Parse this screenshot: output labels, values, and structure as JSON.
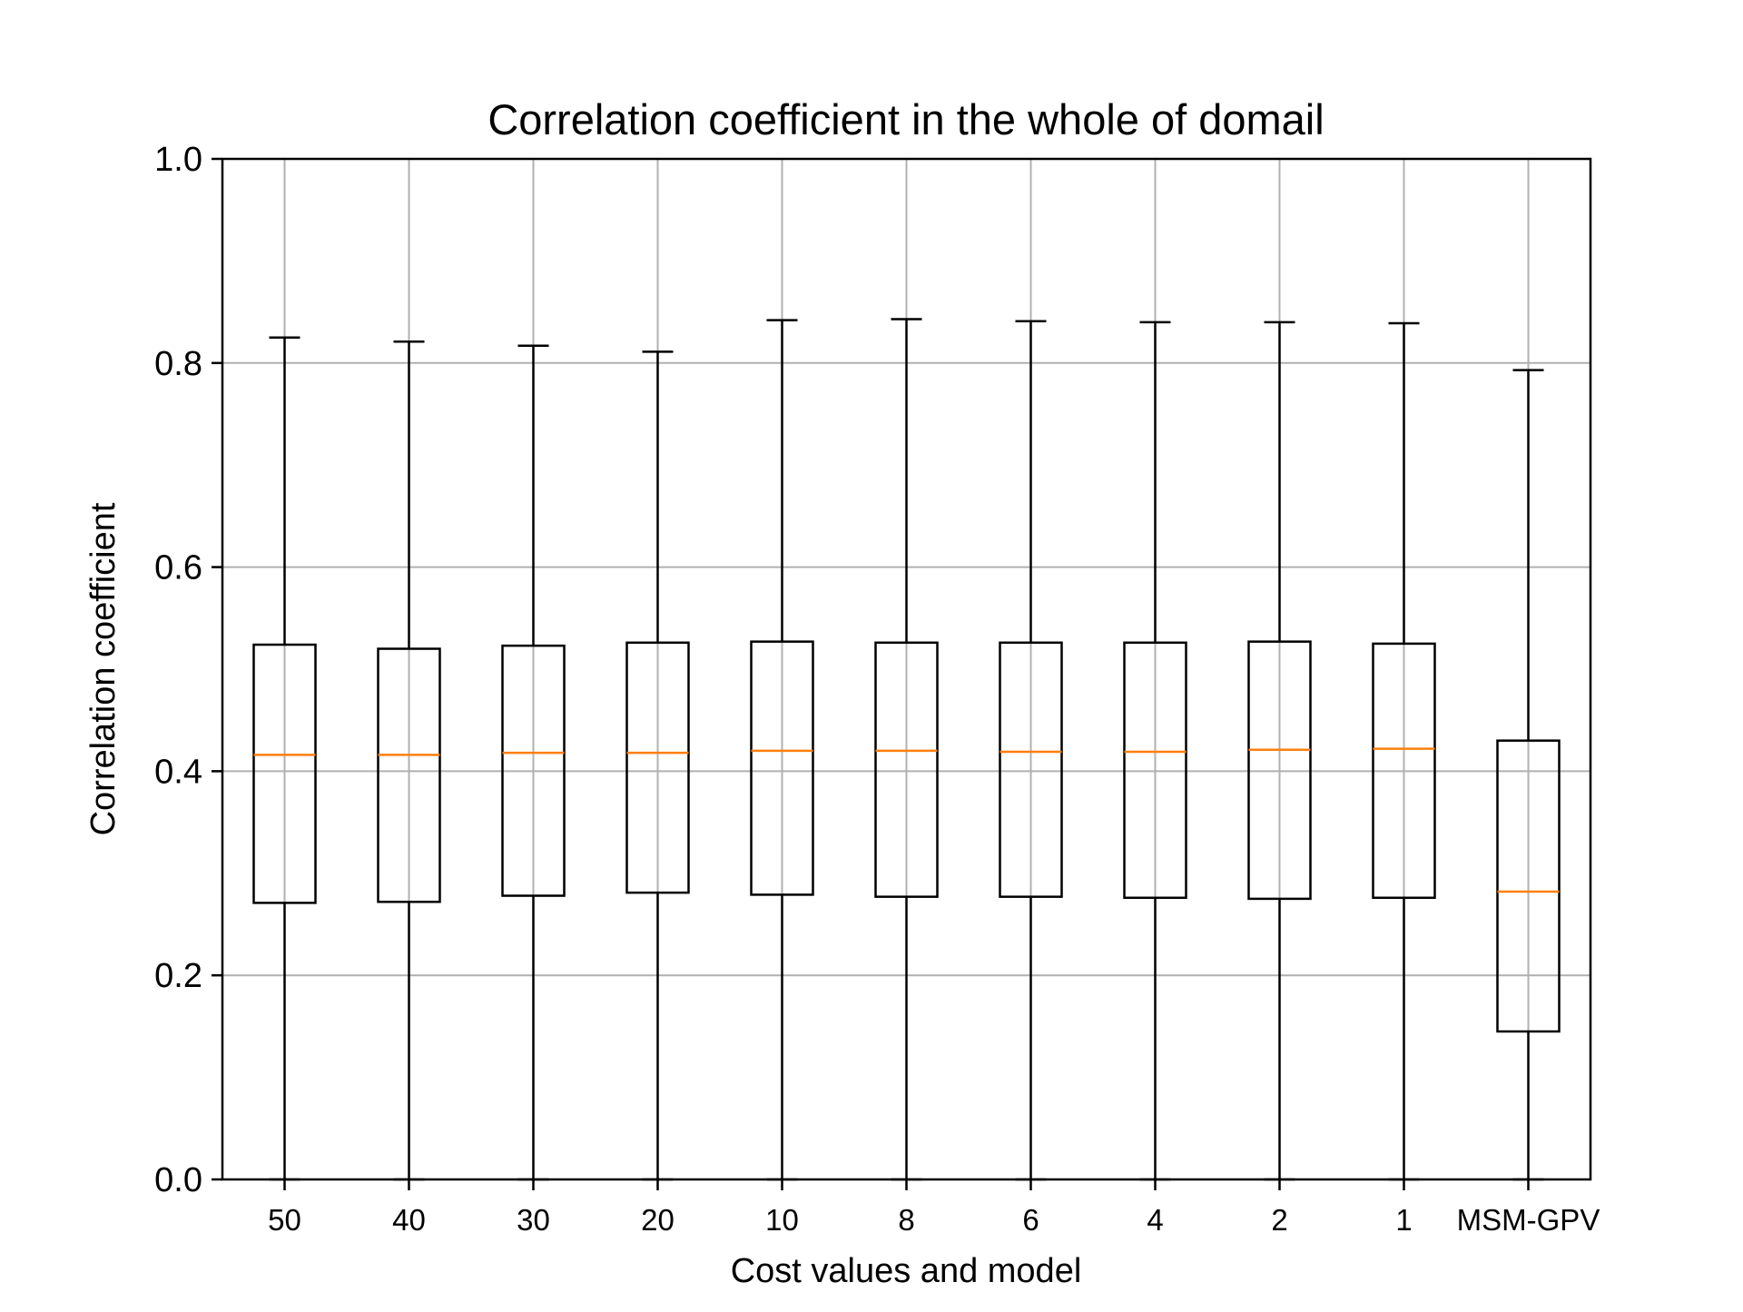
{
  "chart_data": {
    "type": "box",
    "title": "Correlation coefficient in the whole of domail",
    "xlabel": "Cost values and model",
    "ylabel": "Correlation coefficient",
    "ylim": [
      0.0,
      1.0
    ],
    "yticks": [
      0.0,
      0.2,
      0.4,
      0.6,
      0.8,
      1.0
    ],
    "ytick_labels": [
      "0.0",
      "0.2",
      "0.4",
      "0.6",
      "0.8",
      "1.0"
    ],
    "grid": true,
    "categories": [
      "50",
      "40",
      "30",
      "20",
      "10",
      "8",
      "6",
      "4",
      "2",
      "1",
      "MSM-GPV"
    ],
    "boxes": [
      {
        "category": "50",
        "whisker_low": 0.0,
        "q1": 0.271,
        "median": 0.416,
        "q3": 0.524,
        "whisker_high": 0.825
      },
      {
        "category": "40",
        "whisker_low": 0.0,
        "q1": 0.272,
        "median": 0.416,
        "q3": 0.52,
        "whisker_high": 0.821
      },
      {
        "category": "30",
        "whisker_low": 0.0,
        "q1": 0.278,
        "median": 0.418,
        "q3": 0.523,
        "whisker_high": 0.817
      },
      {
        "category": "20",
        "whisker_low": 0.0,
        "q1": 0.281,
        "median": 0.418,
        "q3": 0.526,
        "whisker_high": 0.811
      },
      {
        "category": "10",
        "whisker_low": 0.0,
        "q1": 0.279,
        "median": 0.42,
        "q3": 0.527,
        "whisker_high": 0.842
      },
      {
        "category": "8",
        "whisker_low": 0.0,
        "q1": 0.277,
        "median": 0.42,
        "q3": 0.526,
        "whisker_high": 0.843
      },
      {
        "category": "6",
        "whisker_low": 0.0,
        "q1": 0.277,
        "median": 0.419,
        "q3": 0.526,
        "whisker_high": 0.841
      },
      {
        "category": "4",
        "whisker_low": 0.0,
        "q1": 0.276,
        "median": 0.419,
        "q3": 0.526,
        "whisker_high": 0.84
      },
      {
        "category": "2",
        "whisker_low": 0.0,
        "q1": 0.275,
        "median": 0.421,
        "q3": 0.527,
        "whisker_high": 0.84
      },
      {
        "category": "1",
        "whisker_low": 0.0,
        "q1": 0.276,
        "median": 0.422,
        "q3": 0.525,
        "whisker_high": 0.839
      },
      {
        "category": "MSM-GPV",
        "whisker_low": 0.0,
        "q1": 0.145,
        "median": 0.282,
        "q3": 0.43,
        "whisker_high": 0.793
      }
    ],
    "colors": {
      "box": "#000000",
      "median": "#ff7f0e",
      "grid": "#b0b0b0"
    }
  }
}
